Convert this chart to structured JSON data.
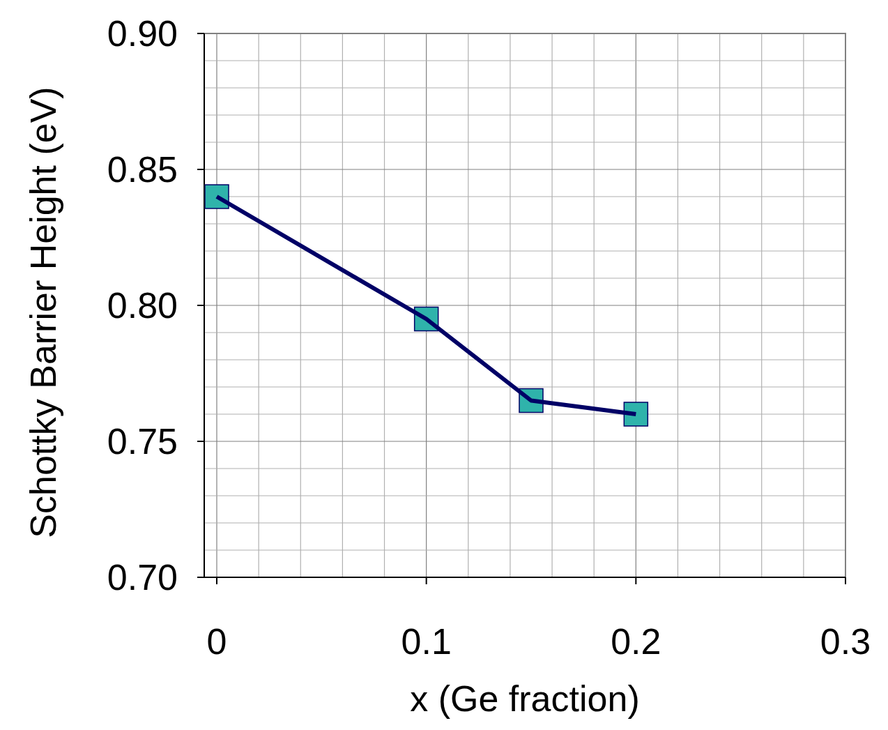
{
  "chart_data": {
    "type": "line",
    "xlabel": "x (Ge fraction)",
    "ylabel": "Schottky Barrier Height (eV)",
    "x": [
      0,
      0.1,
      0.15,
      0.2
    ],
    "series": [
      {
        "color": "#000066",
        "values": [
          0.84,
          0.795,
          0.765,
          0.76
        ]
      }
    ],
    "xlim": [
      0,
      0.3
    ],
    "ylim": [
      0.7,
      0.9
    ],
    "xticks": [
      0,
      {
        "value": 0.02,
        "label": null
      },
      {
        "value": 0.04,
        "label": null
      },
      {
        "value": 0.06,
        "label": null
      },
      {
        "value": 0.08,
        "label": null
      },
      0.1,
      {
        "value": 0.12,
        "label": null
      },
      {
        "value": 0.14,
        "label": null
      },
      {
        "value": 0.16,
        "label": null
      },
      {
        "value": 0.18,
        "label": null
      },
      0.2,
      {
        "value": 0.22,
        "label": null
      },
      {
        "value": 0.24,
        "label": null
      },
      {
        "value": 0.26,
        "label": null
      },
      {
        "value": 0.28,
        "label": null
      },
      0.3
    ],
    "yticks": [
      {
        "value": 0.7,
        "label": "0.70"
      },
      {
        "value": 0.71,
        "label": null
      },
      {
        "value": 0.72,
        "label": null
      },
      {
        "value": 0.73,
        "label": null
      },
      {
        "value": 0.74,
        "label": null
      },
      {
        "value": 0.75,
        "label": "0.75"
      },
      {
        "value": 0.76,
        "label": null
      },
      {
        "value": 0.77,
        "label": null
      },
      {
        "value": 0.78,
        "label": null
      },
      {
        "value": 0.79,
        "label": null
      },
      {
        "value": 0.8,
        "label": "0.80"
      },
      {
        "value": 0.81,
        "label": null
      },
      {
        "value": 0.82,
        "label": null
      },
      {
        "value": 0.83,
        "label": null
      },
      {
        "value": 0.84,
        "label": null
      },
      {
        "value": 0.85,
        "label": "0.85"
      },
      {
        "value": 0.86,
        "label": null
      },
      {
        "value": 0.87,
        "label": null
      },
      {
        "value": 0.88,
        "label": null
      },
      {
        "value": 0.89,
        "label": null
      },
      {
        "value": 0.9,
        "label": "0.90"
      }
    ],
    "grid": true,
    "marker": "square",
    "line_style": "solid"
  }
}
